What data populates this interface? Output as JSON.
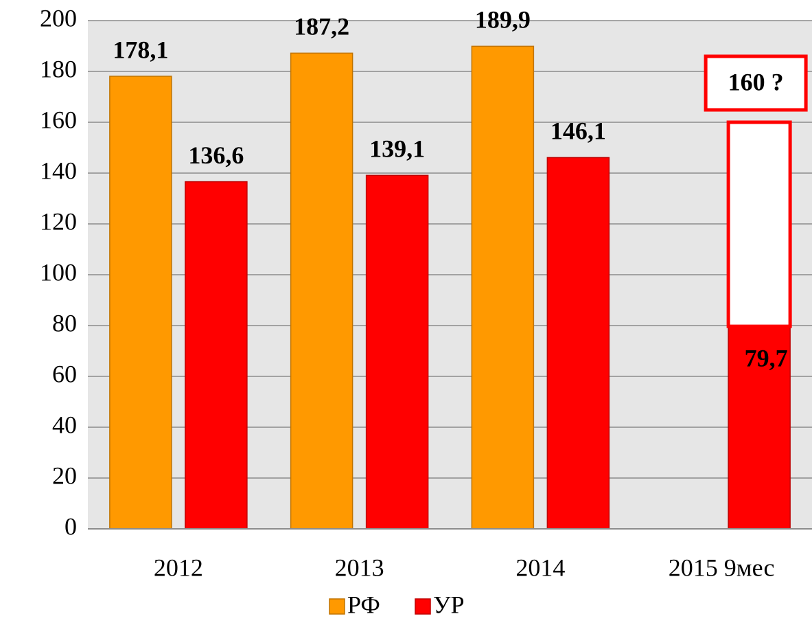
{
  "chart_data": {
    "type": "bar",
    "categories": [
      "2012",
      "2013",
      "2014",
      "2015 9мес"
    ],
    "series": [
      {
        "name": "РФ",
        "color": "#ff9900",
        "values": [
          178.1,
          187.2,
          189.9,
          null
        ],
        "value_labels": [
          "178,1",
          "187,2",
          "189,9",
          null
        ]
      },
      {
        "name": "УР",
        "color": "#ff0000",
        "values": [
          136.6,
          139.1,
          146.1,
          79.7
        ],
        "value_labels": [
          "136,6",
          "139,1",
          "146,1",
          "79,7"
        ]
      }
    ],
    "annotation": {
      "label": "160 ?",
      "value": 160
    },
    "ylim": [
      0,
      200
    ],
    "yticks": [
      0,
      20,
      40,
      60,
      80,
      100,
      120,
      140,
      160,
      180,
      200
    ],
    "grid": true,
    "legend": "bottom"
  }
}
